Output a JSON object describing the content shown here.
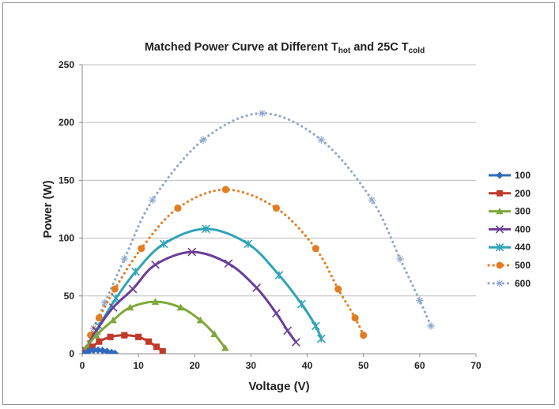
{
  "chart_data": {
    "type": "scatter",
    "title": {
      "parts": [
        {
          "text": "Matched Power Curve at Different T"
        },
        {
          "text": "hot",
          "sub": true
        },
        {
          "text": " and 25C T"
        },
        {
          "text": "cold",
          "sub": true
        }
      ]
    },
    "xlabel": "Voltage (V)",
    "ylabel": "Power (W)",
    "xlim": [
      0,
      70
    ],
    "ylim": [
      0,
      250
    ],
    "xticks": [
      0,
      10,
      20,
      30,
      40,
      50,
      60,
      70
    ],
    "yticks": [
      0,
      50,
      100,
      150,
      200,
      250
    ],
    "grid": "horizontal",
    "legend": "right",
    "series": [
      {
        "name": "100",
        "color": "#2e6bbd",
        "marker": "diamond",
        "line": "solid",
        "x": [
          0.4,
          1.2,
          2.0,
          2.8,
          3.6,
          4.4,
          5.2,
          5.8
        ],
        "y": [
          0.5,
          2.2,
          3.0,
          3.2,
          2.8,
          2.0,
          1.0,
          0.3
        ]
      },
      {
        "name": "200",
        "color": "#c0392b",
        "marker": "square",
        "line": "solid",
        "x": [
          0.3,
          1.8,
          3.0,
          5.0,
          7.5,
          10.0,
          11.8,
          13.2,
          14.3
        ],
        "y": [
          0.8,
          6.0,
          10.5,
          14.5,
          16.0,
          14.5,
          10.5,
          6.0,
          2.0
        ]
      },
      {
        "name": "300",
        "color": "#80a83a",
        "marker": "triangle",
        "line": "solid",
        "x": [
          0.5,
          2.5,
          5.5,
          8.5,
          13.0,
          17.5,
          21.0,
          23.5,
          25.4
        ],
        "y": [
          4.0,
          16.0,
          29.0,
          40.0,
          45.0,
          40.0,
          29.0,
          17.0,
          5.0
        ]
      },
      {
        "name": "400",
        "color": "#6a3d98",
        "marker": "x",
        "line": "solid",
        "x": [
          0.5,
          2.5,
          5.5,
          9.0,
          13.0,
          19.5,
          26.0,
          31.0,
          34.5,
          36.5,
          38.0
        ],
        "y": [
          3.0,
          20.0,
          40.0,
          56.0,
          77.0,
          88.0,
          78.0,
          57.0,
          35.0,
          20.0,
          10.0
        ]
      },
      {
        "name": "440",
        "color": "#2fa3b8",
        "marker": "star",
        "line": "solid",
        "x": [
          0.5,
          3.0,
          6.0,
          9.5,
          14.5,
          22.0,
          29.5,
          35.0,
          39.0,
          41.5,
          42.5
        ],
        "y": [
          3.0,
          24.0,
          48.0,
          71.0,
          95.0,
          108.0,
          95.0,
          68.0,
          43.0,
          24.0,
          13.0
        ]
      },
      {
        "name": "500",
        "color": "#e37d22",
        "marker": "circle",
        "line": "dot",
        "x": [
          0.5,
          1.5,
          3.0,
          5.8,
          10.5,
          17.0,
          25.5,
          34.5,
          41.5,
          45.5,
          48.5,
          50.0
        ],
        "y": [
          3.0,
          16.0,
          31.0,
          56.0,
          91.0,
          126.0,
          142.0,
          126.0,
          91.0,
          56.0,
          31.0,
          16.0
        ]
      },
      {
        "name": "600",
        "color": "#92a9cf",
        "marker": "plus-star",
        "line": "dot",
        "x": [
          0.5,
          2.0,
          4.0,
          7.5,
          12.5,
          21.5,
          32.0,
          42.5,
          51.5,
          56.5,
          60.0,
          62.0
        ],
        "y": [
          3.0,
          22.0,
          44.0,
          82.0,
          133.0,
          185.0,
          208.0,
          185.0,
          133.0,
          82.0,
          46.0,
          24.0
        ]
      }
    ]
  }
}
